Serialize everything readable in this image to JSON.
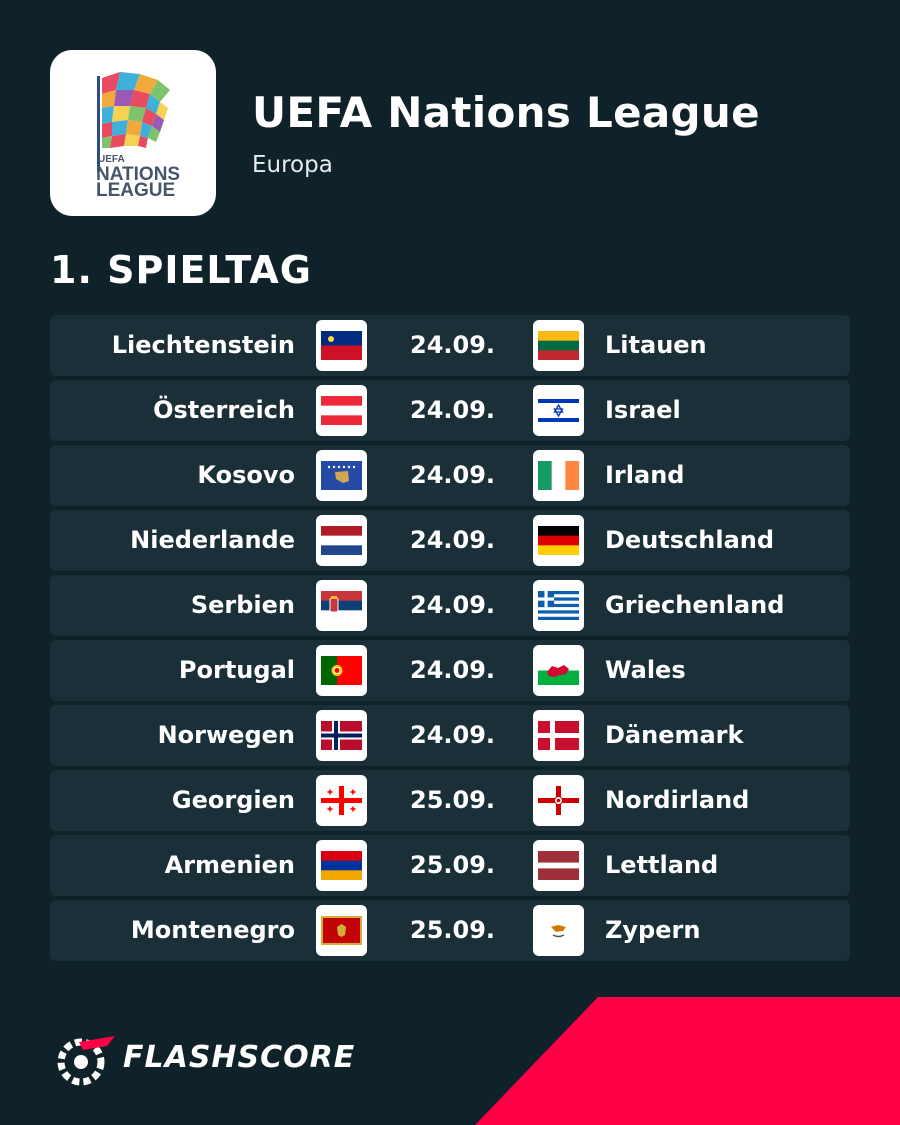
{
  "header": {
    "title": "UEFA Nations League",
    "region": "Europa",
    "logo": {
      "icon": "uefa-nations-league-logo",
      "text_line1": "UEFA",
      "text_line2": "NATIONS",
      "text_line3": "LEAGUE"
    }
  },
  "round": {
    "title": "1. SPIELTAG"
  },
  "fixtures": [
    {
      "home": "Liechtenstein",
      "home_flag": "liechtenstein",
      "date": "24.09.",
      "away": "Litauen",
      "away_flag": "lithuania"
    },
    {
      "home": "Österreich",
      "home_flag": "austria",
      "date": "24.09.",
      "away": "Israel",
      "away_flag": "israel"
    },
    {
      "home": "Kosovo",
      "home_flag": "kosovo",
      "date": "24.09.",
      "away": "Irland",
      "away_flag": "ireland"
    },
    {
      "home": "Niederlande",
      "home_flag": "netherlands",
      "date": "24.09.",
      "away": "Deutschland",
      "away_flag": "germany"
    },
    {
      "home": "Serbien",
      "home_flag": "serbia",
      "date": "24.09.",
      "away": "Griechenland",
      "away_flag": "greece"
    },
    {
      "home": "Portugal",
      "home_flag": "portugal",
      "date": "24.09.",
      "away": "Wales",
      "away_flag": "wales"
    },
    {
      "home": "Norwegen",
      "home_flag": "norway",
      "date": "24.09.",
      "away": "Dänemark",
      "away_flag": "denmark"
    },
    {
      "home": "Georgien",
      "home_flag": "georgia",
      "date": "25.09.",
      "away": "Nordirland",
      "away_flag": "northern-ireland"
    },
    {
      "home": "Armenien",
      "home_flag": "armenia",
      "date": "25.09.",
      "away": "Lettland",
      "away_flag": "latvia"
    },
    {
      "home": "Montenegro",
      "home_flag": "montenegro",
      "date": "25.09.",
      "away": "Zypern",
      "away_flag": "cyprus"
    }
  ],
  "brand": {
    "name": "FLASHSCORE",
    "icon": "flashscore-logo-icon"
  },
  "colors": {
    "background": "#0f2129",
    "row": "#1a2f38",
    "accent": "#ff0046"
  }
}
